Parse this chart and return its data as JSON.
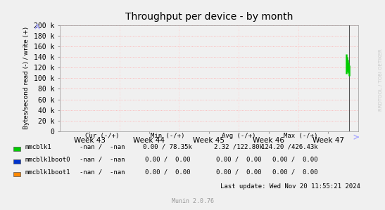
{
  "title": "Throughput per device - by month",
  "ylabel": "Bytes/second read (-) / write (+)",
  "bg_color": "#f0f0f0",
  "plot_bg_color": "#f0f0f0",
  "grid_color_h": "#ffaaaa",
  "grid_color_v": "#ffcccc",
  "border_color": "#aaaaaa",
  "ylim": [
    0,
    200000
  ],
  "yticks": [
    0,
    20000,
    40000,
    60000,
    80000,
    100000,
    120000,
    140000,
    160000,
    180000,
    200000
  ],
  "ytick_labels": [
    "0",
    "20 k",
    "40 k",
    "60 k",
    "80 k",
    "100 k",
    "120 k",
    "140 k",
    "160 k",
    "180 k",
    "200 k"
  ],
  "week_labels": [
    "Week 43",
    "Week 44",
    "Week 45",
    "Week 46",
    "Week 47"
  ],
  "side_label": "RRDTOOL / TOBI OETIKER",
  "spike_color": "#00cc00",
  "vline_color": "#555555",
  "legend_entries": [
    {
      "label": "mmcblk1",
      "color": "#00cc00"
    },
    {
      "label": "mmcblk1boot0",
      "color": "#0033cc"
    },
    {
      "label": "mmcblk1boot1",
      "color": "#ff8800"
    }
  ],
  "table_headers": [
    "Cur (-/+)",
    "Min (-/+)",
    "Avg (-/+)",
    "Max (-/+)"
  ],
  "table_rows": [
    [
      "-nan /  -nan",
      "0.00 / 78.35k",
      "2.32 /122.80k",
      "124.20 /426.43k"
    ],
    [
      "-nan /  -nan",
      "0.00 /  0.00",
      "0.00 /  0.00",
      "0.00 /  0.00"
    ],
    [
      "-nan /  -nan",
      "0.00 /  0.00",
      "0.00 /  0.00",
      "0.00 /  0.00"
    ]
  ],
  "last_update": "Last update: Wed Nov 20 11:55:21 2024",
  "munin_version": "Munin 2.0.76",
  "fig_width": 5.47,
  "fig_height": 2.99,
  "dpi": 100
}
